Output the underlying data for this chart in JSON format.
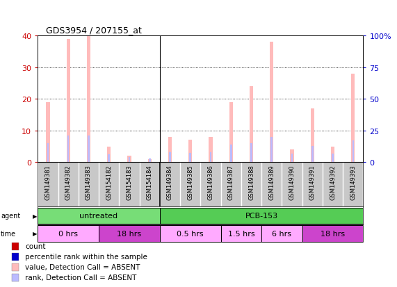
{
  "title": "GDS3954 / 207155_at",
  "samples": [
    "GSM149381",
    "GSM149382",
    "GSM149383",
    "GSM154182",
    "GSM154183",
    "GSM154184",
    "GSM149384",
    "GSM149385",
    "GSM149386",
    "GSM149387",
    "GSM149388",
    "GSM149389",
    "GSM149390",
    "GSM149391",
    "GSM149392",
    "GSM149393"
  ],
  "value_absent": [
    19,
    39,
    40,
    5,
    2,
    1,
    8,
    7,
    8,
    19,
    24,
    38,
    4,
    17,
    5,
    28
  ],
  "rank_absent": [
    15,
    21,
    21,
    6,
    4,
    3,
    8,
    7.5,
    8,
    14,
    15,
    20,
    7,
    13,
    6.5,
    17
  ],
  "ylim_left": [
    0,
    40
  ],
  "ylim_right": [
    0,
    100
  ],
  "yticks_left": [
    0,
    10,
    20,
    30,
    40
  ],
  "yticks_right": [
    0,
    25,
    50,
    75,
    100
  ],
  "agent_groups": [
    {
      "label": "untreated",
      "start": 0,
      "end": 6,
      "color": "#77dd77"
    },
    {
      "label": "PCB-153",
      "start": 6,
      "end": 16,
      "color": "#55cc55"
    }
  ],
  "time_groups": [
    {
      "label": "0 hrs",
      "start": 0,
      "end": 3,
      "color": "#ffaaff"
    },
    {
      "label": "18 hrs",
      "start": 3,
      "end": 6,
      "color": "#cc44cc"
    },
    {
      "label": "0.5 hrs",
      "start": 6,
      "end": 9,
      "color": "#ffaaff"
    },
    {
      "label": "1.5 hrs",
      "start": 9,
      "end": 11,
      "color": "#ffaaff"
    },
    {
      "label": "6 hrs",
      "start": 11,
      "end": 13,
      "color": "#ffaaff"
    },
    {
      "label": "18 hrs",
      "start": 13,
      "end": 16,
      "color": "#cc44cc"
    }
  ],
  "value_absent_color": "#ffbbbb",
  "rank_absent_color": "#bbbbff",
  "bg_color": "#ffffff",
  "left_axis_color": "#cc0000",
  "right_axis_color": "#0000cc",
  "sample_box_color": "#c8c8c8",
  "legend_items": [
    {
      "label": "count",
      "color": "#cc0000"
    },
    {
      "label": "percentile rank within the sample",
      "color": "#0000cc"
    },
    {
      "label": "value, Detection Call = ABSENT",
      "color": "#ffbbbb"
    },
    {
      "label": "rank, Detection Call = ABSENT",
      "color": "#bbbbff"
    }
  ]
}
